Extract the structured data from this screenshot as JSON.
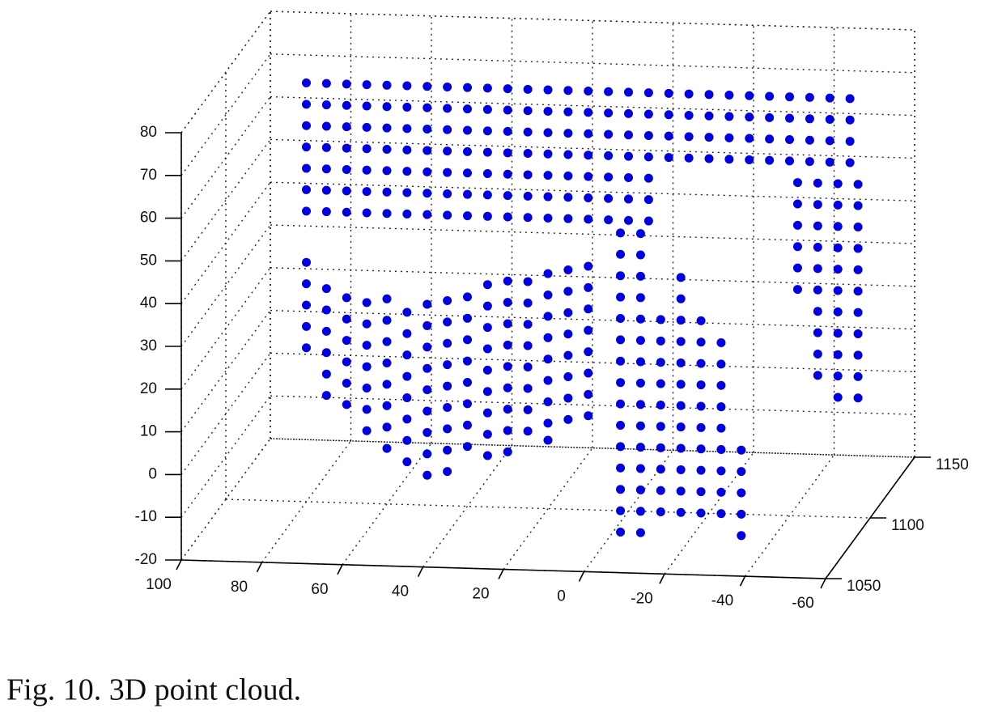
{
  "caption": "Fig. 10.  3D point cloud.",
  "chart_data": {
    "type": "scatter3d",
    "color": "#0000e0",
    "grid": true,
    "xlim": [
      100,
      -60
    ],
    "xticks": [
      100,
      80,
      60,
      40,
      20,
      0,
      -20,
      -40,
      -60
    ],
    "ylim": [
      1050,
      1150
    ],
    "yticks": [
      1050,
      1100,
      1150
    ],
    "zlim": [
      -20,
      80
    ],
    "zticks": [
      -20,
      -10,
      0,
      10,
      20,
      30,
      40,
      50,
      60,
      70,
      80
    ],
    "x": [
      80,
      80,
      80,
      80,
      75,
      75,
      75,
      75,
      70,
      70,
      70,
      70,
      65,
      65,
      65,
      65,
      60,
      60,
      60,
      60,
      55,
      55,
      55,
      55,
      50,
      50,
      50,
      50,
      45,
      45,
      45,
      45,
      40,
      40,
      40,
      40,
      35,
      35,
      35,
      35,
      30,
      30,
      30,
      30,
      25,
      25,
      25,
      25,
      20,
      20,
      20,
      20,
      15,
      15,
      15,
      15,
      10,
      10,
      10,
      10,
      5,
      5,
      5,
      5,
      0,
      0,
      0,
      0,
      -5,
      -5,
      -5,
      -5,
      -10,
      -10,
      -10,
      -10,
      -15,
      -15,
      -15,
      -15,
      -20,
      -20,
      -20,
      -20,
      -25,
      -25,
      -25,
      -25,
      -30,
      -30,
      -30,
      -30,
      -35,
      -35,
      -35,
      -35,
      -40,
      -40,
      -40,
      -40,
      -45,
      -45,
      -45,
      -45,
      -50,
      -50,
      -50,
      -50,
      -55,
      -55,
      -55,
      -55,
      80,
      80,
      80,
      75,
      75,
      75,
      70,
      70,
      70,
      65,
      65,
      65,
      60,
      60,
      60,
      55,
      55,
      55,
      50,
      50,
      50,
      45,
      45,
      45,
      40,
      40,
      40,
      35,
      35,
      35,
      30,
      30,
      30,
      25,
      25,
      25,
      20,
      20,
      20,
      15,
      15,
      15,
      10,
      10,
      10,
      5,
      5,
      5,
      0,
      0,
      0,
      -5,
      -5,
      -5,
      2,
      2,
      2,
      2,
      2,
      2,
      2,
      2,
      2,
      2,
      2,
      2,
      2,
      2,
      2,
      -3,
      -3,
      -3,
      -3,
      -3,
      -3,
      -3,
      -3,
      -3,
      -3,
      -3,
      -3,
      -3,
      -3,
      -3,
      80,
      80,
      80,
      80,
      80,
      75,
      75,
      75,
      75,
      75,
      75,
      70,
      70,
      70,
      70,
      70,
      70,
      65,
      65,
      65,
      65,
      65,
      65,
      65,
      60,
      60,
      60,
      60,
      60,
      60,
      60,
      60,
      55,
      55,
      55,
      55,
      55,
      55,
      55,
      55,
      50,
      50,
      50,
      50,
      50,
      50,
      50,
      50,
      50,
      45,
      45,
      45,
      45,
      45,
      45,
      45,
      45,
      45,
      40,
      40,
      40,
      40,
      40,
      40,
      40,
      40,
      35,
      35,
      35,
      35,
      35,
      35,
      35,
      35,
      35,
      30,
      30,
      30,
      30,
      30,
      30,
      30,
      30,
      30,
      25,
      25,
      25,
      25,
      25,
      25,
      25,
      25,
      20,
      20,
      20,
      20,
      20,
      20,
      20,
      20,
      20,
      15,
      15,
      15,
      15,
      15,
      15,
      15,
      15,
      10,
      10,
      10,
      10,
      10,
      10,
      10,
      10,
      -8,
      -8,
      -8,
      -8,
      -8,
      -8,
      -8,
      -8,
      -8,
      -8,
      -13,
      -13,
      -13,
      -13,
      -13,
      -13,
      -13,
      -13,
      -13,
      -13,
      -13,
      -13,
      -18,
      -18,
      -18,
      -18,
      -18,
      -18,
      -18,
      -18,
      -18,
      -18,
      -23,
      -23,
      -23,
      -23,
      -23,
      -23,
      -23,
      -23,
      -23,
      -28,
      -28,
      -28,
      -28,
      -28,
      -42,
      -42,
      -42,
      -42,
      -42,
      -42,
      -47,
      -47,
      -47,
      -47,
      -47,
      -47,
      -47,
      -47,
      -47,
      -47,
      -52,
      -52,
      -52,
      -52,
      -52,
      -52,
      -52,
      -52,
      -52,
      -52,
      -52,
      -57,
      -57,
      -57,
      -57,
      -57,
      -57,
      -57,
      -57,
      -57,
      -57,
      -57
    ],
    "y": [
      1100,
      1100,
      1100,
      1100,
      1100,
      1100,
      1100,
      1100,
      1100,
      1100,
      1100,
      1100,
      1100,
      1100,
      1100,
      1100,
      1100,
      1100,
      1100,
      1100,
      1100,
      1100,
      1100,
      1100,
      1100,
      1100,
      1100,
      1100,
      1100,
      1100,
      1100,
      1100,
      1100,
      1100,
      1100,
      1100,
      1100,
      1100,
      1100,
      1100,
      1100,
      1100,
      1100,
      1100,
      1100,
      1100,
      1100,
      1100,
      1100,
      1100,
      1100,
      1100,
      1100,
      1100,
      1100,
      1100,
      1100,
      1100,
      1100,
      1100,
      1100,
      1100,
      1100,
      1100,
      1100,
      1100,
      1100,
      1100,
      1100,
      1100,
      1100,
      1100,
      1100,
      1100,
      1100,
      1100,
      1100,
      1100,
      1100,
      1100,
      1100,
      1100,
      1100,
      1100,
      1100,
      1100,
      1100,
      1100,
      1100,
      1100,
      1100,
      1100,
      1100,
      1100,
      1100,
      1100,
      1100,
      1100,
      1100,
      1100,
      1100,
      1100,
      1100,
      1100,
      1100,
      1100,
      1100,
      1100,
      1100,
      1100,
      1100,
      1100,
      1100,
      1100,
      1100,
      1100,
      1100,
      1100,
      1100,
      1100,
      1100,
      1100,
      1100,
      1100,
      1100,
      1100,
      1100,
      1100,
      1100,
      1100,
      1100,
      1100,
      1100,
      1100,
      1100,
      1100,
      1100,
      1100,
      1100,
      1100,
      1100,
      1100,
      1100,
      1100,
      1100,
      1100,
      1100,
      1100,
      1100,
      1100,
      1100,
      1100,
      1100,
      1100,
      1100,
      1100,
      1100,
      1100,
      1100,
      1100,
      1100,
      1100,
      1100,
      1100,
      1100,
      1100,
      1100,
      1100,
      1100,
      1100,
      1100,
      1100,
      1100,
      1100,
      1100,
      1100,
      1100,
      1100,
      1100,
      1100,
      1100,
      1100,
      1100,
      1100,
      1100,
      1100,
      1100,
      1100,
      1100,
      1100,
      1100,
      1100,
      1100,
      1100,
      1100,
      1100,
      1100,
      1100,
      1100,
      1100,
      1100,
      1100,
      1100,
      1100,
      1100,
      1100,
      1100,
      1100,
      1100,
      1100,
      1100,
      1100,
      1100,
      1100,
      1100,
      1100,
      1100,
      1100,
      1100,
      1100,
      1100,
      1100,
      1100,
      1100,
      1100,
      1100,
      1100,
      1100,
      1100,
      1100,
      1100,
      1100,
      1100,
      1100,
      1100,
      1100,
      1100,
      1100,
      1100,
      1100,
      1100,
      1100,
      1100,
      1100,
      1100,
      1100,
      1100,
      1100,
      1100,
      1100,
      1100,
      1100,
      1100,
      1100,
      1100,
      1100,
      1100,
      1100,
      1100,
      1100,
      1100,
      1100,
      1100,
      1100,
      1100,
      1100,
      1100,
      1100,
      1100,
      1100,
      1100,
      1100,
      1100,
      1100,
      1100,
      1100,
      1100,
      1100,
      1100,
      1100,
      1100,
      1100,
      1100,
      1100,
      1100,
      1100,
      1100,
      1100,
      1100,
      1100,
      1100,
      1100,
      1100,
      1100,
      1100,
      1100,
      1100,
      1100,
      1100,
      1100,
      1100,
      1100,
      1100,
      1100,
      1100,
      1100,
      1100,
      1100,
      1100,
      1100,
      1100,
      1100,
      1100,
      1100,
      1100,
      1100,
      1100,
      1100,
      1100,
      1100,
      1100,
      1100,
      1100,
      1100,
      1100,
      1100,
      1100,
      1100,
      1100,
      1100,
      1100,
      1100,
      1100,
      1100,
      1100,
      1100,
      1100,
      1100,
      1100,
      1100,
      1100,
      1100,
      1100,
      1100,
      1100,
      1100,
      1100,
      1100,
      1100,
      1100,
      1100,
      1100,
      1100,
      1100,
      1100,
      1100,
      1100,
      1100,
      1100,
      1100,
      1100,
      1100,
      1100,
      1100,
      1100,
      1100,
      1100,
      1100,
      1100,
      1100,
      1100,
      1100,
      1100,
      1100,
      1100,
      1100,
      1100,
      1100,
      1100,
      1100,
      1100,
      1100,
      1100,
      1100,
      1100,
      1100,
      1100,
      1100,
      1100,
      1100,
      1100,
      1100,
      1100,
      1100,
      1100,
      1100,
      1100
    ],
    "z": [
      78,
      73,
      68,
      63,
      78,
      73,
      68,
      63,
      78,
      73,
      68,
      63,
      78,
      73,
      68,
      63,
      78,
      73,
      68,
      63,
      78,
      73,
      68,
      63,
      78,
      73,
      68,
      63,
      78,
      73,
      68,
      63,
      78,
      73,
      68,
      63,
      78,
      73,
      68,
      63,
      78,
      73,
      68,
      63,
      78,
      73,
      68,
      63,
      78,
      73,
      68,
      63,
      78,
      73,
      68,
      63,
      78,
      73,
      68,
      63,
      78,
      73,
      68,
      63,
      78,
      73,
      68,
      63,
      78,
      73,
      68,
      63,
      78,
      73,
      68,
      63,
      78,
      73,
      68,
      63,
      78,
      73,
      68,
      63,
      78,
      73,
      68,
      63,
      78,
      73,
      68,
      63,
      78,
      73,
      68,
      63,
      78,
      73,
      68,
      63,
      78,
      73,
      68,
      63,
      78,
      73,
      68,
      63,
      78,
      73,
      68,
      63,
      58,
      53,
      48,
      58,
      53,
      48,
      58,
      53,
      48,
      58,
      53,
      48,
      58,
      53,
      48,
      58,
      53,
      48,
      58,
      53,
      48,
      58,
      53,
      48,
      58,
      53,
      48,
      58,
      53,
      48,
      58,
      53,
      48,
      58,
      53,
      48,
      58,
      53,
      48,
      58,
      53,
      48,
      58,
      53,
      48,
      58,
      53,
      48,
      58,
      53,
      48,
      58,
      53,
      48,
      45,
      40,
      35,
      30,
      25,
      20,
      15,
      10,
      5,
      0,
      -5,
      -10,
      -15,
      -20,
      -25,
      45,
      40,
      35,
      30,
      25,
      20,
      15,
      10,
      5,
      0,
      -5,
      -10,
      -15,
      -20,
      -25,
      36,
      31,
      26,
      21,
      16,
      30,
      25,
      20,
      15,
      10,
      5,
      28,
      23,
      18,
      13,
      8,
      3,
      27,
      22,
      17,
      12,
      7,
      2,
      -3,
      28,
      23,
      18,
      13,
      8,
      3,
      -2,
      -7,
      25,
      20,
      15,
      10,
      5,
      0,
      -5,
      -10,
      27,
      22,
      17,
      12,
      7,
      2,
      -3,
      -8,
      -13,
      28,
      23,
      18,
      13,
      8,
      3,
      -2,
      -7,
      -12,
      29,
      24,
      19,
      14,
      9,
      4,
      -1,
      -6,
      32,
      27,
      22,
      17,
      12,
      7,
      2,
      -3,
      -8,
      33,
      28,
      23,
      18,
      13,
      8,
      3,
      -2,
      -7,
      33,
      28,
      23,
      18,
      13,
      8,
      3,
      -2,
      35,
      30,
      25,
      20,
      15,
      10,
      5,
      0,
      -4,
      36,
      31,
      26,
      21,
      16,
      11,
      6,
      1,
      37,
      32,
      27,
      22,
      17,
      12,
      7,
      2,
      25,
      20,
      15,
      10,
      5,
      0,
      -5,
      -10,
      -15,
      -20,
      35,
      30,
      25,
      20,
      15,
      10,
      5,
      0,
      -5,
      -10,
      -15,
      -20,
      25,
      20,
      15,
      10,
      5,
      0,
      -5,
      -10,
      -15,
      -20,
      20,
      15,
      10,
      5,
      0,
      -5,
      -10,
      -15,
      -20,
      -5,
      -10,
      -15,
      -20,
      -25,
      58,
      53,
      48,
      43,
      38,
      33,
      58,
      53,
      48,
      43,
      38,
      33,
      28,
      23,
      18,
      13,
      58,
      53,
      48,
      43,
      38,
      33,
      28,
      23,
      18,
      13,
      8,
      58,
      53,
      48,
      43,
      38,
      33,
      28,
      23,
      18,
      13,
      8
    ]
  }
}
